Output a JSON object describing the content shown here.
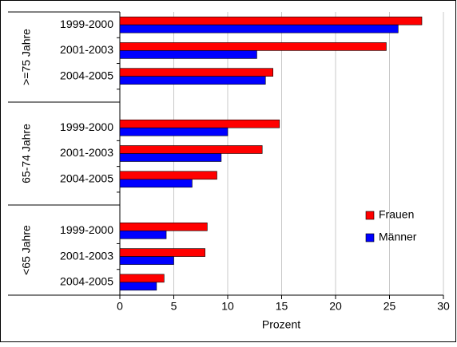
{
  "chart_data": {
    "type": "hbar",
    "groups": [
      ">=75 Jahre",
      "65-74 Jahre",
      "<65 Jahre"
    ],
    "categories": [
      "1999-2000",
      "2001-2003",
      "2004-2005",
      "1999-2000",
      "2001-2003",
      "2004-2005",
      "1999-2000",
      "2001-2003",
      "2004-2005"
    ],
    "series": [
      {
        "name": "Frauen",
        "color": "#ff0000",
        "values": [
          28.0,
          24.7,
          14.2,
          14.8,
          13.2,
          9.0,
          8.1,
          7.9,
          4.1
        ]
      },
      {
        "name": "Männer",
        "color": "#0000ff",
        "values": [
          25.8,
          12.7,
          13.5,
          10.0,
          9.4,
          6.7,
          4.3,
          5.0,
          3.4
        ]
      }
    ],
    "xlabel": "Prozent",
    "xlim": [
      0,
      30
    ],
    "xticks": [
      0,
      5,
      10,
      15,
      20,
      25,
      30
    ],
    "grid": true
  }
}
